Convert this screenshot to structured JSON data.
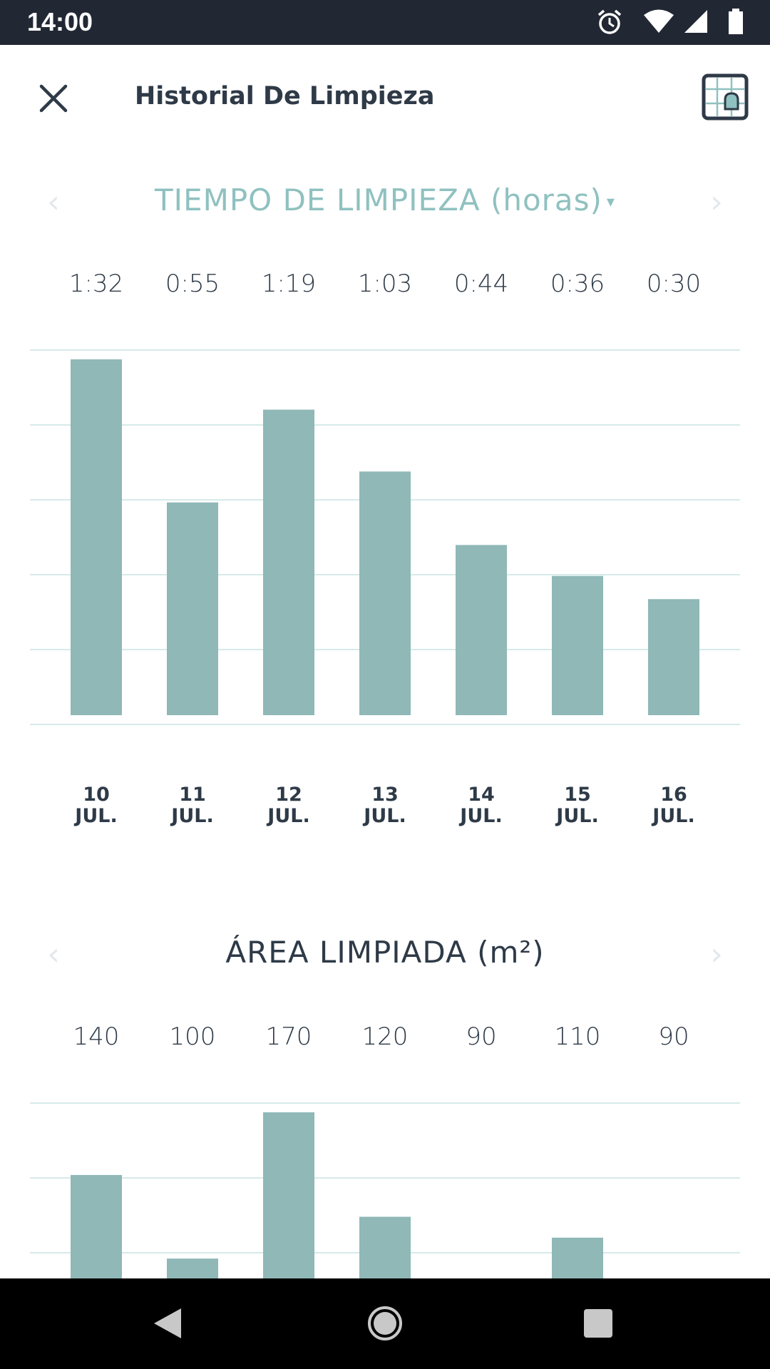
{
  "status_bar": {
    "time": "14:00",
    "icons": [
      "alarm-icon",
      "wifi-icon",
      "signal-icon",
      "battery-icon"
    ]
  },
  "app_bar": {
    "title": "Historial De Limpieza",
    "close_icon": "close-icon",
    "map_icon": "map-grid-icon"
  },
  "colors": {
    "bar": "#8fb8b7",
    "accent": "#8fc1c0",
    "grid": "#d6eae9",
    "text": "#2e3a47"
  },
  "time_chart": {
    "header": "TIEMPO DE LIMPIEZA (horas)",
    "caret": "▾",
    "prev": "‹",
    "next": "›",
    "value_labels": [
      "1:32",
      "0:55",
      "1:19",
      "1:03",
      "0:44",
      "0:36",
      "0:30"
    ],
    "dates": [
      {
        "day": "10",
        "month": "JUL."
      },
      {
        "day": "11",
        "month": "JUL."
      },
      {
        "day": "12",
        "month": "JUL."
      },
      {
        "day": "13",
        "month": "JUL."
      },
      {
        "day": "14",
        "month": "JUL."
      },
      {
        "day": "15",
        "month": "JUL."
      },
      {
        "day": "16",
        "month": "JUL."
      }
    ]
  },
  "area_chart": {
    "header": "ÁREA LIMPIADA (m²)",
    "prev": "‹",
    "next": "›",
    "value_labels": [
      "140",
      "100",
      "170",
      "120",
      "90",
      "110",
      "90"
    ]
  },
  "chart_data": [
    {
      "type": "bar",
      "categories": [
        "10 JUL.",
        "11 JUL.",
        "12 JUL.",
        "13 JUL.",
        "14 JUL.",
        "15 JUL.",
        "16 JUL."
      ],
      "values": [
        92,
        55,
        79,
        63,
        44,
        36,
        30
      ],
      "title": "TIEMPO DE LIMPIEZA (horas)",
      "ylim": [
        0,
        95
      ],
      "grid": true
    },
    {
      "type": "bar",
      "categories": [
        "10 JUL.",
        "11 JUL.",
        "12 JUL.",
        "13 JUL.",
        "14 JUL.",
        "15 JUL.",
        "16 JUL."
      ],
      "values": [
        140,
        100,
        170,
        120,
        90,
        110,
        90
      ],
      "title": "ÁREA LIMPIADA (m²)",
      "grid": true
    }
  ],
  "nav_bar": {
    "back_icon": "back-icon",
    "home_icon": "home-icon",
    "recents_icon": "recents-icon"
  }
}
